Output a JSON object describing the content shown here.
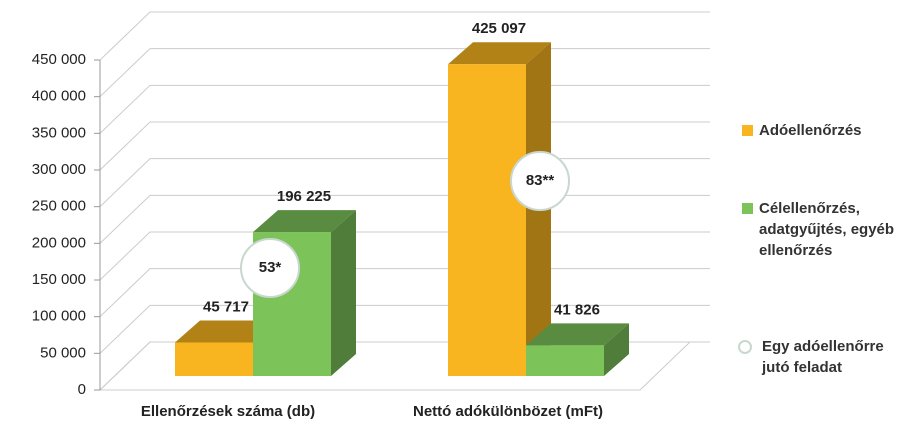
{
  "chart_data": {
    "type": "bar3d",
    "categories": [
      "Ellenőrzések száma (db)",
      "Nettó adókülönbözet (mFt)"
    ],
    "series": [
      {
        "name": "Adóellenőrzés",
        "color": "#f8b520",
        "values": [
          45717,
          425097
        ],
        "value_labels": [
          "45 717",
          "425 097"
        ]
      },
      {
        "name": "Célellenőrzés, adatgyűjtés, egyéb ellenőrzés",
        "color": "#7cc35a",
        "values": [
          196225,
          41826
        ],
        "value_labels": [
          "196 225",
          "41 826"
        ]
      }
    ],
    "annotations": [
      "53*",
      "83**"
    ],
    "annotation_legend": "Egy adóellenőrre jutó feladat",
    "ylim": [
      0,
      450000
    ],
    "yticks": [
      {
        "value": 0,
        "label": "0"
      },
      {
        "value": 50000,
        "label": "50 000"
      },
      {
        "value": 100000,
        "label": "100 000"
      },
      {
        "value": 150000,
        "label": "150 000"
      },
      {
        "value": 200000,
        "label": "200 000"
      },
      {
        "value": 250000,
        "label": "250 000"
      },
      {
        "value": 300000,
        "label": "300 000"
      },
      {
        "value": 350000,
        "label": "350 000"
      },
      {
        "value": 400000,
        "label": "400 000"
      },
      {
        "value": 450000,
        "label": "450 000"
      }
    ],
    "grid": true,
    "legend": "right"
  }
}
